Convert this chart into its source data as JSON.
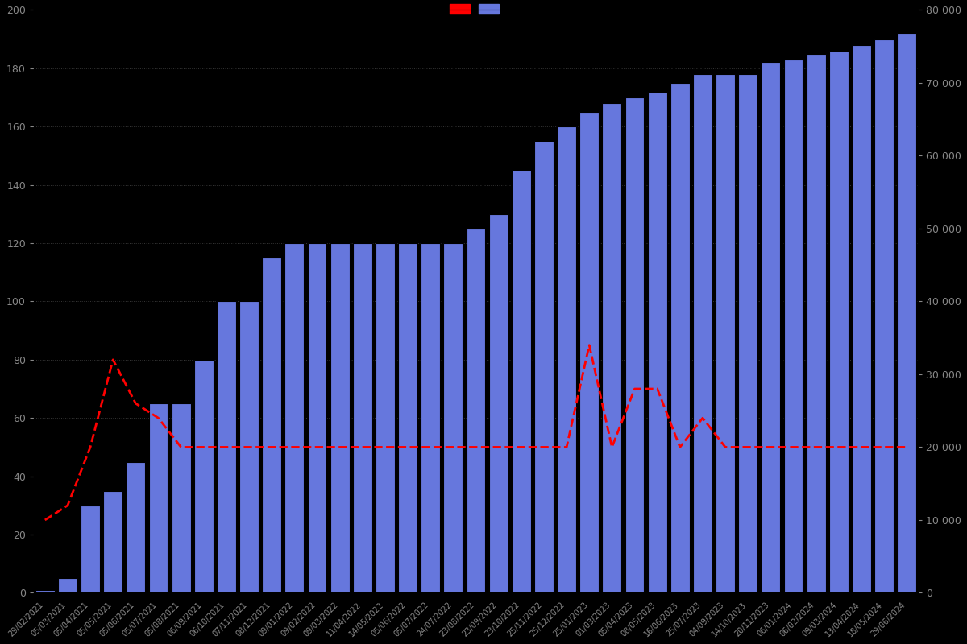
{
  "background_color": "#000000",
  "bar_color": "#6677dd",
  "bar_edgecolor": "#000000",
  "line_color": "#ff0000",
  "left_ylim": [
    0,
    200
  ],
  "right_ylim": [
    0,
    80000
  ],
  "left_yticks": [
    0,
    20,
    40,
    60,
    80,
    100,
    120,
    140,
    160,
    180,
    200
  ],
  "right_yticks": [
    0,
    10000,
    20000,
    30000,
    40000,
    50000,
    60000,
    70000,
    80000
  ],
  "right_yticklabels": [
    "0",
    "10 000",
    "20 000",
    "30 000",
    "40 000",
    "50 000",
    "60 000",
    "70 000",
    "80 000"
  ],
  "grid_linestyle": ":",
  "grid_color": "#444444",
  "text_color": "#888888",
  "dates": [
    "29/02/2021",
    "05/03/2021",
    "05/04/2021",
    "05/05/2021",
    "05/06/2021",
    "05/07/2021",
    "05/08/2021",
    "06/09/2021",
    "06/10/2021",
    "07/11/2021",
    "08/12/2021",
    "09/01/2022",
    "09/02/2022",
    "09/03/2022",
    "11/04/2022",
    "14/05/2022",
    "05/06/2022",
    "05/07/2022",
    "24/07/2022",
    "23/08/2022",
    "23/09/2022",
    "23/10/2022",
    "25/11/2022",
    "25/12/2022",
    "25/01/2023",
    "01/03/2023",
    "05/04/2023",
    "08/05/2023",
    "16/06/2023",
    "25/07/2023",
    "04/09/2023",
    "14/10/2023",
    "20/11/2023",
    "06/01/2024",
    "06/02/2024",
    "09/03/2024",
    "13/04/2024",
    "18/05/2024",
    "29/06/2024"
  ],
  "bar_values": [
    1,
    5,
    30,
    35,
    45,
    65,
    65,
    80,
    100,
    100,
    115,
    120,
    120,
    120,
    120,
    120,
    120,
    120,
    120,
    125,
    130,
    145,
    155,
    160,
    165,
    168,
    170,
    172,
    175,
    178,
    178,
    178,
    182,
    183,
    185,
    186,
    188,
    190,
    192
  ],
  "price_values": [
    25,
    30,
    50,
    80,
    65,
    60,
    50,
    50,
    50,
    50,
    50,
    50,
    50,
    50,
    50,
    50,
    50,
    50,
    50,
    50,
    50,
    50,
    50,
    50,
    85,
    50,
    70,
    70,
    50,
    60,
    50,
    50,
    50,
    50,
    50,
    50,
    50,
    50,
    50
  ],
  "xtick_labels_show": [
    "29/02/2021",
    "05/04/2021",
    "05/05/2021",
    "05/06/2021",
    "05/07/2021",
    "05/08/2021",
    "06/09/2021",
    "06/10/2021",
    "07/11/2021",
    "08/12/2021",
    "09/01/2022",
    "11/04/2022",
    "14/05/2022",
    "24/07/2022",
    "23/08/2022",
    "23/09/2022",
    "23/10/2022",
    "25/11/2022",
    "25/12/2022",
    "25/01/2023",
    "01/03/2023",
    "05/04/2023",
    "08/05/2023",
    "16/06/2023",
    "25/07/2023",
    "04/09/2023",
    "14/10/2023",
    "20/11/2023",
    "06/01/2024",
    "06/02/2024",
    "09/03/2024",
    "13/04/2024",
    "18/05/2024",
    "29/06/2024"
  ]
}
